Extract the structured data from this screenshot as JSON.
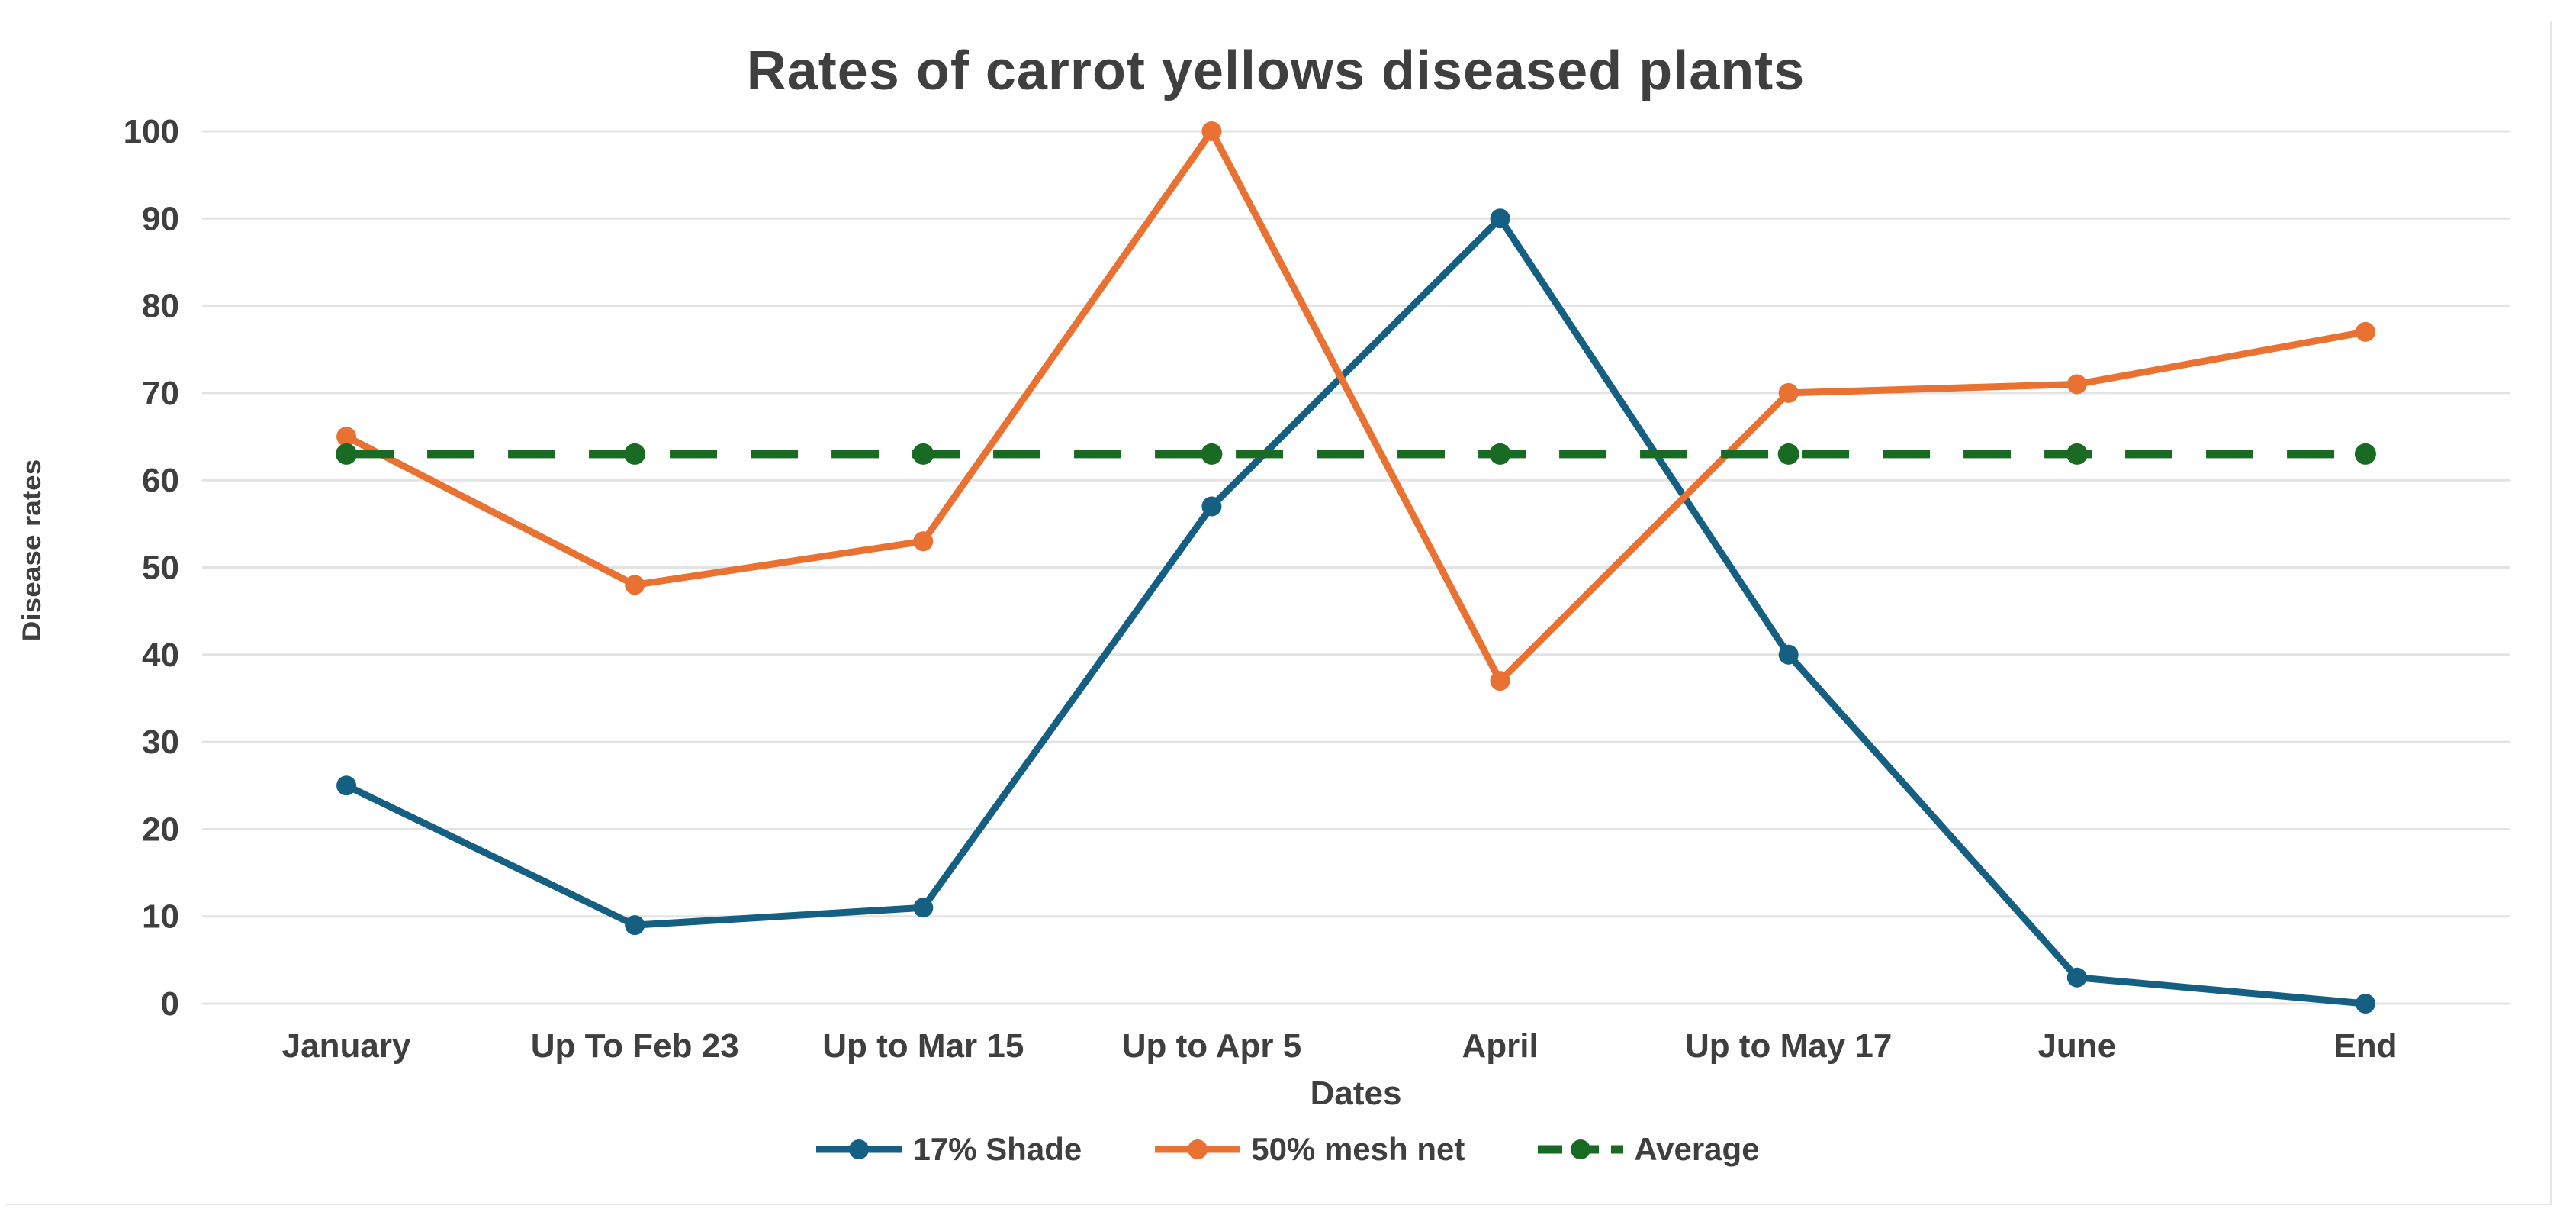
{
  "page": {
    "background_color": "#ffffff",
    "card_border_color": "#e7e7e7"
  },
  "chart_data": {
    "type": "line",
    "title": "Rates of carrot yellows diseased plants",
    "xlabel": "Dates",
    "ylabel": "Disease rates",
    "categories": [
      "January",
      "Up To Feb 23",
      "Up to Mar 15",
      "Up to Apr 5",
      "April",
      "Up to May 17",
      "June",
      "End"
    ],
    "series": [
      {
        "name": "17% Shade",
        "color": "#156082",
        "style": "solid",
        "values": [
          25,
          9,
          11,
          57,
          90,
          40,
          3,
          0
        ]
      },
      {
        "name": "50% mesh net",
        "color": "#E97132",
        "style": "solid",
        "values": [
          65,
          48,
          53,
          100,
          37,
          70,
          71,
          77
        ]
      },
      {
        "name": "Average",
        "color": "#196B24",
        "style": "dashed",
        "values": [
          63,
          63,
          63,
          63,
          63,
          63,
          63,
          63
        ]
      }
    ],
    "ylim": [
      0,
      100
    ],
    "yticks": [
      0,
      10,
      20,
      30,
      40,
      50,
      60,
      70,
      80,
      90,
      100
    ],
    "grid": "horizontal",
    "grid_color": "#e3e3e3",
    "legend_position": "bottom",
    "text_color": "#3f3f3f"
  }
}
